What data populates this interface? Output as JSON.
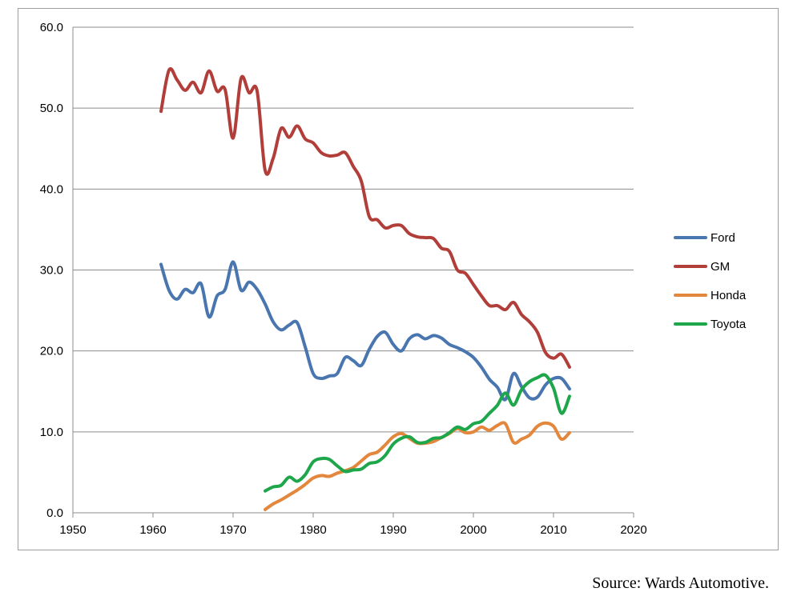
{
  "chart_data": {
    "type": "line",
    "xlim": [
      1950,
      2020
    ],
    "ylim": [
      0,
      60
    ],
    "x_ticks": [
      "1950",
      "1960",
      "1970",
      "1980",
      "1990",
      "2000",
      "2010",
      "2020"
    ],
    "y_ticks": [
      "0.0",
      "10.0",
      "20.0",
      "30.0",
      "40.0",
      "50.0",
      "60.0"
    ],
    "grid": "horizontal",
    "legend_position": "right",
    "series": [
      {
        "name": "Ford",
        "color": "#4a76b0",
        "points": [
          [
            1961,
            30.7
          ],
          [
            1962,
            27.5
          ],
          [
            1963,
            26.4
          ],
          [
            1964,
            27.6
          ],
          [
            1965,
            27.2
          ],
          [
            1966,
            28.3
          ],
          [
            1967,
            24.2
          ],
          [
            1968,
            26.8
          ],
          [
            1969,
            27.6
          ],
          [
            1970,
            31.0
          ],
          [
            1971,
            27.5
          ],
          [
            1972,
            28.5
          ],
          [
            1973,
            27.6
          ],
          [
            1974,
            25.8
          ],
          [
            1975,
            23.6
          ],
          [
            1976,
            22.6
          ],
          [
            1977,
            23.2
          ],
          [
            1978,
            23.5
          ],
          [
            1979,
            20.5
          ],
          [
            1980,
            17.2
          ],
          [
            1981,
            16.6
          ],
          [
            1982,
            16.9
          ],
          [
            1983,
            17.2
          ],
          [
            1984,
            19.2
          ],
          [
            1985,
            18.8
          ],
          [
            1986,
            18.2
          ],
          [
            1987,
            20.2
          ],
          [
            1988,
            21.8
          ],
          [
            1989,
            22.3
          ],
          [
            1990,
            20.8
          ],
          [
            1991,
            20.0
          ],
          [
            1992,
            21.5
          ],
          [
            1993,
            22.0
          ],
          [
            1994,
            21.5
          ],
          [
            1995,
            21.9
          ],
          [
            1996,
            21.6
          ],
          [
            1997,
            20.8
          ],
          [
            1998,
            20.4
          ],
          [
            1999,
            19.9
          ],
          [
            2000,
            19.2
          ],
          [
            2001,
            18.0
          ],
          [
            2002,
            16.5
          ],
          [
            2003,
            15.5
          ],
          [
            2004,
            14.0
          ],
          [
            2005,
            17.2
          ],
          [
            2006,
            15.6
          ],
          [
            2007,
            14.2
          ],
          [
            2008,
            14.3
          ],
          [
            2009,
            15.8
          ],
          [
            2010,
            16.6
          ],
          [
            2011,
            16.6
          ],
          [
            2012,
            15.3
          ]
        ]
      },
      {
        "name": "GM",
        "color": "#b23e3a",
        "points": [
          [
            1961,
            49.6
          ],
          [
            1962,
            54.7
          ],
          [
            1963,
            53.5
          ],
          [
            1964,
            52.2
          ],
          [
            1965,
            53.2
          ],
          [
            1966,
            51.9
          ],
          [
            1967,
            54.6
          ],
          [
            1968,
            52.1
          ],
          [
            1969,
            52.3
          ],
          [
            1970,
            46.3
          ],
          [
            1971,
            53.7
          ],
          [
            1972,
            51.9
          ],
          [
            1973,
            52.1
          ],
          [
            1974,
            42.3
          ],
          [
            1975,
            43.8
          ],
          [
            1976,
            47.5
          ],
          [
            1977,
            46.4
          ],
          [
            1978,
            47.8
          ],
          [
            1979,
            46.2
          ],
          [
            1980,
            45.7
          ],
          [
            1981,
            44.5
          ],
          [
            1982,
            44.1
          ],
          [
            1983,
            44.2
          ],
          [
            1984,
            44.5
          ],
          [
            1985,
            42.8
          ],
          [
            1986,
            41.0
          ],
          [
            1987,
            36.6
          ],
          [
            1988,
            36.2
          ],
          [
            1989,
            35.2
          ],
          [
            1990,
            35.5
          ],
          [
            1991,
            35.5
          ],
          [
            1992,
            34.5
          ],
          [
            1993,
            34.1
          ],
          [
            1994,
            34.0
          ],
          [
            1995,
            33.9
          ],
          [
            1996,
            32.7
          ],
          [
            1997,
            32.3
          ],
          [
            1998,
            30.0
          ],
          [
            1999,
            29.6
          ],
          [
            2000,
            28.2
          ],
          [
            2001,
            26.8
          ],
          [
            2002,
            25.6
          ],
          [
            2003,
            25.6
          ],
          [
            2004,
            25.1
          ],
          [
            2005,
            26.0
          ],
          [
            2006,
            24.5
          ],
          [
            2007,
            23.6
          ],
          [
            2008,
            22.3
          ],
          [
            2009,
            19.8
          ],
          [
            2010,
            19.1
          ],
          [
            2011,
            19.6
          ],
          [
            2012,
            18.0
          ]
        ]
      },
      {
        "name": "Honda",
        "color": "#e3873c",
        "points": [
          [
            1974,
            0.4
          ],
          [
            1975,
            1.1
          ],
          [
            1976,
            1.6
          ],
          [
            1977,
            2.2
          ],
          [
            1978,
            2.8
          ],
          [
            1979,
            3.5
          ],
          [
            1980,
            4.3
          ],
          [
            1981,
            4.6
          ],
          [
            1982,
            4.5
          ],
          [
            1983,
            4.9
          ],
          [
            1984,
            5.2
          ],
          [
            1985,
            5.6
          ],
          [
            1986,
            6.4
          ],
          [
            1987,
            7.2
          ],
          [
            1988,
            7.5
          ],
          [
            1989,
            8.4
          ],
          [
            1990,
            9.4
          ],
          [
            1991,
            9.8
          ],
          [
            1992,
            9.2
          ],
          [
            1993,
            8.6
          ],
          [
            1994,
            8.6
          ],
          [
            1995,
            8.8
          ],
          [
            1996,
            9.3
          ],
          [
            1997,
            9.8
          ],
          [
            1998,
            10.4
          ],
          [
            1999,
            9.9
          ],
          [
            2000,
            10.0
          ],
          [
            2001,
            10.6
          ],
          [
            2002,
            10.2
          ],
          [
            2003,
            10.8
          ],
          [
            2004,
            11.0
          ],
          [
            2005,
            8.7
          ],
          [
            2006,
            9.1
          ],
          [
            2007,
            9.6
          ],
          [
            2008,
            10.7
          ],
          [
            2009,
            11.1
          ],
          [
            2010,
            10.7
          ],
          [
            2011,
            9.1
          ],
          [
            2012,
            9.9
          ]
        ]
      },
      {
        "name": "Toyota",
        "color": "#1ea64a",
        "points": [
          [
            1974,
            2.7
          ],
          [
            1975,
            3.2
          ],
          [
            1976,
            3.4
          ],
          [
            1977,
            4.4
          ],
          [
            1978,
            3.9
          ],
          [
            1979,
            4.7
          ],
          [
            1980,
            6.3
          ],
          [
            1981,
            6.7
          ],
          [
            1982,
            6.6
          ],
          [
            1983,
            5.8
          ],
          [
            1984,
            5.1
          ],
          [
            1985,
            5.3
          ],
          [
            1986,
            5.4
          ],
          [
            1987,
            6.1
          ],
          [
            1988,
            6.3
          ],
          [
            1989,
            7.1
          ],
          [
            1990,
            8.5
          ],
          [
            1991,
            9.2
          ],
          [
            1992,
            9.4
          ],
          [
            1993,
            8.7
          ],
          [
            1994,
            8.7
          ],
          [
            1995,
            9.2
          ],
          [
            1996,
            9.3
          ],
          [
            1997,
            9.9
          ],
          [
            1998,
            10.6
          ],
          [
            1999,
            10.3
          ],
          [
            2000,
            11.0
          ],
          [
            2001,
            11.3
          ],
          [
            2002,
            12.3
          ],
          [
            2003,
            13.3
          ],
          [
            2004,
            14.8
          ],
          [
            2005,
            13.3
          ],
          [
            2006,
            15.2
          ],
          [
            2007,
            16.2
          ],
          [
            2008,
            16.7
          ],
          [
            2009,
            17.0
          ],
          [
            2010,
            15.4
          ],
          [
            2011,
            12.3
          ],
          [
            2012,
            14.4
          ]
        ]
      }
    ]
  },
  "source_note": "Source: Wards Automotive."
}
